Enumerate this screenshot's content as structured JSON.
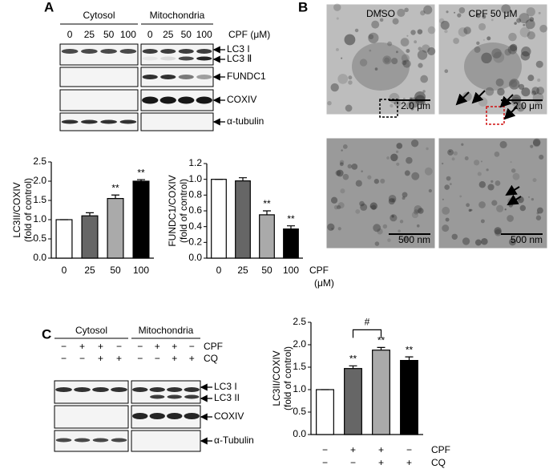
{
  "panel_a": {
    "label": "A",
    "fractions": [
      "Cytosol",
      "Mitochondria"
    ],
    "doses": [
      "0",
      "25",
      "50",
      "100"
    ],
    "dose_label": "CPF (μM)",
    "bands": [
      "LC3 I",
      "LC3 Ⅱ",
      "FUNDC1",
      "COXIV",
      "α-tubulin"
    ]
  },
  "panel_b": {
    "label": "B",
    "conditions": [
      "DMSO",
      "CPF 50 μM"
    ],
    "scale_bars": [
      "2.0 μm",
      "2.0 μm",
      "500 nm",
      "500 nm"
    ]
  },
  "panel_c": {
    "label": "C",
    "fractions": [
      "Cytosol",
      "Mitochondria"
    ],
    "treatments": [
      {
        "name": "CPF",
        "marks": [
          "−",
          "+",
          "+",
          "−"
        ]
      },
      {
        "name": "CQ",
        "marks": [
          "−",
          "−",
          "+",
          "+"
        ]
      }
    ],
    "bands": [
      "LC3 I",
      "LC3 II",
      "COXIV",
      "α-Tubulin"
    ]
  },
  "chart_data": [
    {
      "type": "bar",
      "y_label": [
        "LC3II/COXIV",
        "(fold of control)"
      ],
      "categories": [
        "0",
        "25",
        "50",
        "100"
      ],
      "values": [
        1.0,
        1.1,
        1.55,
        2.0
      ],
      "errors": [
        0,
        0.08,
        0.09,
        0.04
      ],
      "significance": [
        null,
        null,
        "**",
        "**"
      ],
      "colors": [
        "#ffffff",
        "#666666",
        "#aaaaaa",
        "#000000"
      ],
      "ylim": [
        0,
        2.5
      ],
      "yticks": [
        {
          "value": 0,
          "label": "0.0"
        },
        0.5,
        {
          "value": 1,
          "label": "1.0"
        },
        1.5,
        {
          "value": 2,
          "label": "2.0"
        },
        2.5
      ]
    },
    {
      "type": "bar",
      "y_label": [
        "FUNDC1/COXIV",
        "(fold of control)"
      ],
      "x_label": [
        "CPF",
        "(μM)"
      ],
      "categories": [
        "0",
        "25",
        "50",
        "100"
      ],
      "values": [
        1.0,
        0.98,
        0.55,
        0.37
      ],
      "errors": [
        0,
        0.04,
        0.05,
        0.04
      ],
      "significance": [
        null,
        null,
        "**",
        "**"
      ],
      "colors": [
        "#ffffff",
        "#666666",
        "#aaaaaa",
        "#000000"
      ],
      "ylim": [
        0,
        1.2
      ],
      "yticks": [
        {
          "value": 0,
          "label": "0.0"
        },
        0.2,
        0.4,
        0.6,
        0.8,
        {
          "value": 1,
          "label": "1.0"
        },
        1.2
      ]
    },
    {
      "type": "bar",
      "y_label": [
        "LC3II/COXIV",
        "(fold of control)"
      ],
      "categories": [
        null,
        null,
        null,
        null
      ],
      "values": [
        1.0,
        1.47,
        1.88,
        1.65
      ],
      "errors": [
        0,
        0.06,
        0.06,
        0.08
      ],
      "significance": [
        null,
        "**",
        "**",
        "**"
      ],
      "bracket_label": "#",
      "treatments": [
        {
          "name": "CPF",
          "marks": [
            "−",
            "+",
            "+",
            "−"
          ]
        },
        {
          "name": "CQ",
          "marks": [
            "−",
            "−",
            "+",
            "+"
          ]
        }
      ],
      "colors": [
        "#ffffff",
        "#666666",
        "#aaaaaa",
        "#000000"
      ],
      "ylim": [
        0,
        2.5
      ],
      "yticks": [
        {
          "value": 0,
          "label": "0.0"
        },
        0.5,
        {
          "value": 1,
          "label": "1.0"
        },
        1.5,
        {
          "value": 2,
          "label": "2.0"
        },
        2.5
      ]
    }
  ]
}
